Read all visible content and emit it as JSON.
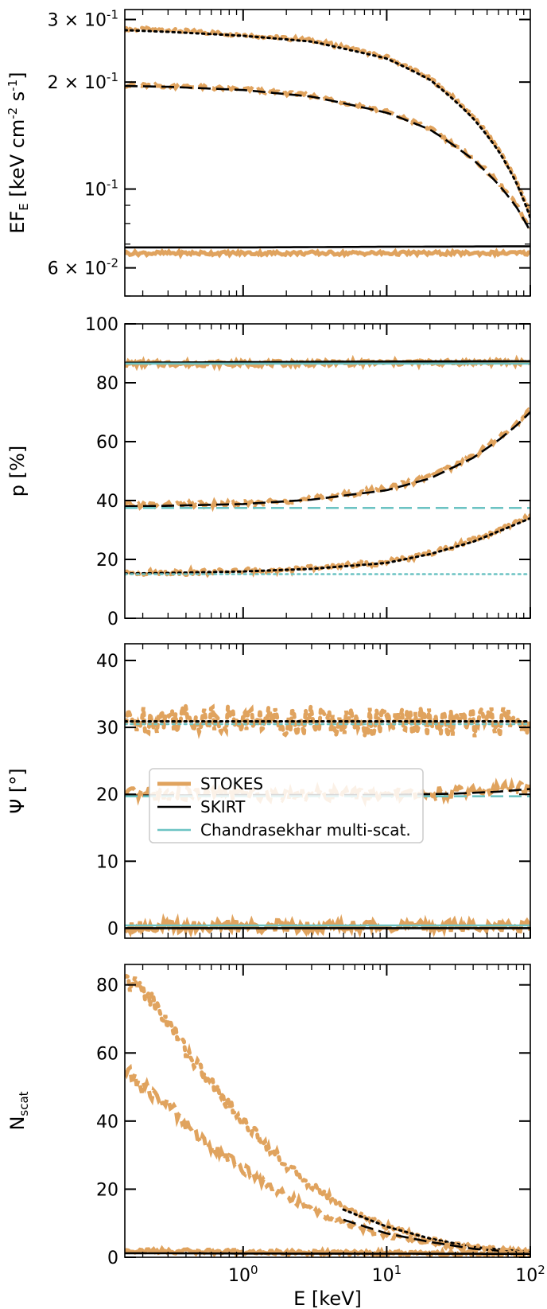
{
  "colors": {
    "stokes": "#e0a35e",
    "skirt": "#000000",
    "chandrasekhar": "#6cc3c3"
  },
  "legend": {
    "placement": "lower-left (third panel)",
    "entries": [
      "STOKES",
      "SKIRT",
      "Chandrasekhar multi-scat."
    ]
  },
  "x_axis": {
    "label": "E [keV]",
    "scale": "log",
    "range": [
      0.15,
      100
    ],
    "tick_labels": [
      "10^0",
      "10^1",
      "10^2"
    ]
  },
  "chart_data": [
    {
      "type": "line",
      "panel": "flux",
      "ylabel": "EF_E [keV cm^-2 s^-1]",
      "yscale": "log",
      "ylim": [
        0.05,
        0.32
      ],
      "yticks": [
        {
          "value": 0.3,
          "label": "3 × 10^-1"
        },
        {
          "value": 0.2,
          "label": "2 × 10^-1"
        },
        {
          "value": 0.1,
          "label": "10^-1"
        },
        {
          "value": 0.06,
          "label": "6 × 10^-2"
        }
      ],
      "series": [
        {
          "source": "STOKES",
          "style": "dotted",
          "x": [
            0.15,
            0.3,
            1,
            3,
            10,
            20,
            40,
            60,
            80,
            100
          ],
          "y": [
            0.282,
            0.28,
            0.272,
            0.262,
            0.235,
            0.205,
            0.16,
            0.13,
            0.105,
            0.085
          ]
        },
        {
          "source": "SKIRT",
          "style": "dotted",
          "x": [
            0.15,
            0.3,
            1,
            3,
            10,
            20,
            40,
            60,
            80,
            100
          ],
          "y": [
            0.28,
            0.277,
            0.27,
            0.26,
            0.233,
            0.203,
            0.158,
            0.128,
            0.104,
            0.083
          ]
        },
        {
          "source": "STOKES",
          "style": "dashed",
          "x": [
            0.15,
            0.3,
            1,
            3,
            10,
            20,
            40,
            60,
            80,
            100
          ],
          "y": [
            0.196,
            0.195,
            0.191,
            0.183,
            0.165,
            0.148,
            0.122,
            0.104,
            0.09,
            0.077
          ]
        },
        {
          "source": "SKIRT",
          "style": "dashed",
          "x": [
            0.15,
            0.3,
            1,
            3,
            10,
            20,
            40,
            60,
            80,
            100
          ],
          "y": [
            0.195,
            0.194,
            0.19,
            0.182,
            0.164,
            0.147,
            0.121,
            0.103,
            0.089,
            0.076
          ]
        },
        {
          "source": "STOKES",
          "style": "solid",
          "x": [
            0.15,
            1,
            10,
            100
          ],
          "y": [
            0.066,
            0.066,
            0.066,
            0.066
          ]
        },
        {
          "source": "SKIRT",
          "style": "solid",
          "x": [
            0.15,
            1,
            10,
            100
          ],
          "y": [
            0.0685,
            0.0685,
            0.0688,
            0.069
          ]
        }
      ]
    },
    {
      "type": "line",
      "panel": "polarization-degree",
      "ylabel": "p [%]",
      "yscale": "linear",
      "ylim": [
        0,
        100
      ],
      "yticks": [
        {
          "value": 0,
          "label": "0"
        },
        {
          "value": 20,
          "label": "20"
        },
        {
          "value": 40,
          "label": "40"
        },
        {
          "value": 60,
          "label": "60"
        },
        {
          "value": 80,
          "label": "80"
        },
        {
          "value": 100,
          "label": "100"
        }
      ],
      "series": [
        {
          "source": "STOKES",
          "style": "solid",
          "x": [
            0.15,
            1,
            10,
            100
          ],
          "y": [
            86.5,
            86.5,
            86.8,
            87
          ]
        },
        {
          "source": "SKIRT",
          "style": "solid",
          "x": [
            0.15,
            1,
            10,
            100
          ],
          "y": [
            86.8,
            87,
            87.2,
            87.3
          ]
        },
        {
          "source": "Chandrasekhar multi-scat.",
          "style": "solid",
          "x": [
            0.15,
            100
          ],
          "y": [
            86.5,
            86.5
          ]
        },
        {
          "source": "STOKES",
          "style": "dashed",
          "x": [
            0.15,
            0.3,
            1,
            3,
            10,
            20,
            40,
            60,
            80,
            100
          ],
          "y": [
            38.5,
            38.5,
            39,
            40.5,
            44,
            48,
            55,
            61,
            66,
            71
          ]
        },
        {
          "source": "SKIRT",
          "style": "dashed",
          "x": [
            0.15,
            0.3,
            1,
            3,
            10,
            20,
            40,
            60,
            80,
            100
          ],
          "y": [
            38,
            38.2,
            38.8,
            40.3,
            43.5,
            47.5,
            54.5,
            60.5,
            65.5,
            70
          ]
        },
        {
          "source": "Chandrasekhar multi-scat.",
          "style": "dashed",
          "x": [
            0.15,
            100
          ],
          "y": [
            37.5,
            37.5
          ]
        },
        {
          "source": "STOKES",
          "style": "dotted",
          "x": [
            0.15,
            0.3,
            1,
            3,
            10,
            20,
            40,
            60,
            80,
            100
          ],
          "y": [
            15.5,
            15.5,
            16,
            17,
            19,
            22,
            26.5,
            30,
            32.5,
            34.5
          ]
        },
        {
          "source": "SKIRT",
          "style": "dotted",
          "x": [
            0.15,
            0.3,
            1,
            3,
            10,
            20,
            40,
            60,
            80,
            100
          ],
          "y": [
            15.2,
            15.4,
            15.9,
            16.8,
            18.8,
            21.8,
            26,
            29.5,
            32,
            34
          ]
        },
        {
          "source": "Chandrasekhar multi-scat.",
          "style": "dotted",
          "x": [
            0.15,
            100
          ],
          "y": [
            15,
            15
          ]
        }
      ]
    },
    {
      "type": "line",
      "panel": "polarization-angle",
      "ylabel": "Ψ [°]",
      "yscale": "linear",
      "ylim": [
        -1.5,
        42.5
      ],
      "yticks": [
        {
          "value": 0,
          "label": "0"
        },
        {
          "value": 10,
          "label": "10"
        },
        {
          "value": 20,
          "label": "20"
        },
        {
          "value": 30,
          "label": "30"
        },
        {
          "value": 40,
          "label": "40"
        }
      ],
      "series": [
        {
          "source": "STOKES",
          "style": "dotted",
          "x": [
            0.15,
            0.3,
            1,
            3,
            10,
            30,
            100
          ],
          "y": [
            30.8,
            31.5,
            31.2,
            31,
            30.8,
            30.7,
            30.9
          ]
        },
        {
          "source": "SKIRT",
          "style": "dotted",
          "x": [
            0.15,
            100
          ],
          "y": [
            30.9,
            30.9
          ]
        },
        {
          "source": "Chandrasekhar multi-scat.",
          "style": "dotted",
          "x": [
            0.15,
            100
          ],
          "y": [
            30.5,
            30.5
          ]
        },
        {
          "source": "STOKES",
          "style": "dashed",
          "x": [
            0.15,
            1,
            10,
            30,
            60,
            100
          ],
          "y": [
            20,
            20,
            20,
            20.3,
            20.8,
            21
          ]
        },
        {
          "source": "SKIRT",
          "style": "dashed",
          "x": [
            0.15,
            1,
            10,
            30,
            60,
            100
          ],
          "y": [
            19.8,
            19.9,
            19.9,
            20.1,
            20.4,
            20.8
          ]
        },
        {
          "source": "Chandrasekhar multi-scat.",
          "style": "dashed",
          "x": [
            0.15,
            100
          ],
          "y": [
            19.7,
            19.7
          ]
        },
        {
          "source": "STOKES",
          "style": "solid",
          "x": [
            0.15,
            1,
            10,
            100
          ],
          "y": [
            0.3,
            0.3,
            0.3,
            0.3
          ]
        },
        {
          "source": "SKIRT",
          "style": "solid",
          "x": [
            0.15,
            100
          ],
          "y": [
            0,
            0
          ]
        },
        {
          "source": "Chandrasekhar multi-scat.",
          "style": "solid",
          "x": [
            0.15,
            100
          ],
          "y": [
            0.4,
            0.4
          ]
        }
      ]
    },
    {
      "type": "line",
      "panel": "scatterings",
      "ylabel": "N_scat",
      "yscale": "linear",
      "ylim": [
        0,
        86
      ],
      "yticks": [
        {
          "value": 0,
          "label": "0"
        },
        {
          "value": 20,
          "label": "20"
        },
        {
          "value": 40,
          "label": "40"
        },
        {
          "value": 60,
          "label": "60"
        },
        {
          "value": 80,
          "label": "80"
        }
      ],
      "series": [
        {
          "source": "STOKES",
          "style": "dotted",
          "x": [
            0.15,
            0.2,
            0.3,
            0.5,
            1,
            2,
            3,
            5,
            10,
            20,
            40,
            100
          ],
          "y": [
            81,
            79,
            69,
            55,
            40,
            27,
            21,
            15,
            9,
            5,
            3,
            1.5
          ]
        },
        {
          "source": "SKIRT",
          "style": "dotted",
          "x": [
            5,
            10,
            20,
            40,
            100
          ],
          "y": [
            14,
            9,
            5.5,
            3,
            1.5
          ]
        },
        {
          "source": "STOKES",
          "style": "dashed",
          "x": [
            0.15,
            0.2,
            0.3,
            0.5,
            1,
            2,
            3,
            5,
            10,
            20,
            40,
            100
          ],
          "y": [
            55,
            50,
            45,
            35,
            26,
            18,
            14,
            10,
            6.5,
            4,
            2.5,
            1.2
          ]
        },
        {
          "source": "SKIRT",
          "style": "dashed",
          "x": [
            5,
            10,
            20,
            40,
            100
          ],
          "y": [
            11,
            7,
            4.5,
            2.5,
            1.2
          ]
        },
        {
          "source": "STOKES",
          "style": "solid",
          "x": [
            0.15,
            1,
            10,
            100
          ],
          "y": [
            2,
            1.5,
            1.2,
            1
          ]
        },
        {
          "source": "SKIRT",
          "style": "solid",
          "x": [
            0.15,
            1,
            10,
            100
          ],
          "y": [
            1.2,
            1.1,
            1.05,
            1
          ]
        }
      ]
    }
  ]
}
